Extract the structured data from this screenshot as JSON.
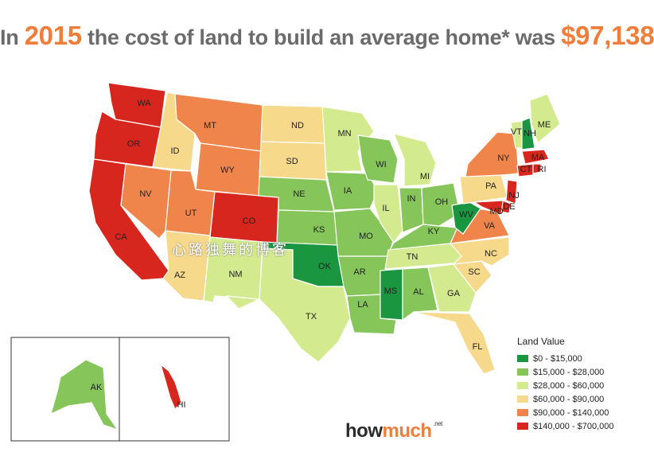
{
  "title": {
    "prefix": "In ",
    "year": "2015",
    "middle": " the cost of land to build an average home* was ",
    "amount": "$97,138"
  },
  "colors": {
    "c1": "#1a9641",
    "c2": "#86c55a",
    "c3": "#d4ea8f",
    "c4": "#f7d98b",
    "c5": "#f0854b",
    "c6": "#d7261d"
  },
  "legend": {
    "title": "Land Value",
    "items": [
      {
        "label": "$0 - $15,000",
        "color": "#1a9641"
      },
      {
        "label": "$15,000 - $28,000",
        "color": "#86c55a"
      },
      {
        "label": "$28,000 - $60,000",
        "color": "#d4ea8f"
      },
      {
        "label": "$60,000 - $90,000",
        "color": "#f7d98b"
      },
      {
        "label": "$90,000 - $140,000",
        "color": "#f0854b"
      },
      {
        "label": "$140,000 - $700,000",
        "color": "#d7261d"
      }
    ]
  },
  "states": [
    {
      "abbr": "WA",
      "tier": "c6"
    },
    {
      "abbr": "OR",
      "tier": "c6"
    },
    {
      "abbr": "CA",
      "tier": "c6"
    },
    {
      "abbr": "ID",
      "tier": "c4"
    },
    {
      "abbr": "NV",
      "tier": "c5"
    },
    {
      "abbr": "MT",
      "tier": "c5"
    },
    {
      "abbr": "WY",
      "tier": "c5"
    },
    {
      "abbr": "UT",
      "tier": "c5"
    },
    {
      "abbr": "AZ",
      "tier": "c4"
    },
    {
      "abbr": "CO",
      "tier": "c6"
    },
    {
      "abbr": "NM",
      "tier": "c3"
    },
    {
      "abbr": "ND",
      "tier": "c4"
    },
    {
      "abbr": "SD",
      "tier": "c4"
    },
    {
      "abbr": "NE",
      "tier": "c2"
    },
    {
      "abbr": "KS",
      "tier": "c2"
    },
    {
      "abbr": "OK",
      "tier": "c1"
    },
    {
      "abbr": "TX",
      "tier": "c3"
    },
    {
      "abbr": "MN",
      "tier": "c3"
    },
    {
      "abbr": "IA",
      "tier": "c2"
    },
    {
      "abbr": "MO",
      "tier": "c2"
    },
    {
      "abbr": "AR",
      "tier": "c2"
    },
    {
      "abbr": "LA",
      "tier": "c2"
    },
    {
      "abbr": "WI",
      "tier": "c2"
    },
    {
      "abbr": "IL",
      "tier": "c3"
    },
    {
      "abbr": "MI",
      "tier": "c3"
    },
    {
      "abbr": "IN",
      "tier": "c2"
    },
    {
      "abbr": "OH",
      "tier": "c2"
    },
    {
      "abbr": "KY",
      "tier": "c2"
    },
    {
      "abbr": "TN",
      "tier": "c3"
    },
    {
      "abbr": "MS",
      "tier": "c1"
    },
    {
      "abbr": "AL",
      "tier": "c2"
    },
    {
      "abbr": "GA",
      "tier": "c3"
    },
    {
      "abbr": "FL",
      "tier": "c4"
    },
    {
      "abbr": "SC",
      "tier": "c4"
    },
    {
      "abbr": "NC",
      "tier": "c4"
    },
    {
      "abbr": "VA",
      "tier": "c5"
    },
    {
      "abbr": "WV",
      "tier": "c1"
    },
    {
      "abbr": "PA",
      "tier": "c4"
    },
    {
      "abbr": "NY",
      "tier": "c5"
    },
    {
      "abbr": "VT",
      "tier": "c3"
    },
    {
      "abbr": "NH",
      "tier": "c1"
    },
    {
      "abbr": "ME",
      "tier": "c3"
    },
    {
      "abbr": "MA",
      "tier": "c6"
    },
    {
      "abbr": "CT",
      "tier": "c6"
    },
    {
      "abbr": "RI",
      "tier": "c6"
    },
    {
      "abbr": "NJ",
      "tier": "c6"
    },
    {
      "abbr": "DE",
      "tier": "c6"
    },
    {
      "abbr": "MD",
      "tier": "c6"
    },
    {
      "abbr": "AK",
      "tier": "c2"
    },
    {
      "abbr": "HI",
      "tier": "c6"
    }
  ],
  "labels": {
    "WA": "WA",
    "OR": "OR",
    "CA": "CA",
    "ID": "ID",
    "NV": "NV",
    "MT": "MT",
    "WY": "WY",
    "UT": "UT",
    "AZ": "AZ",
    "CO": "CO",
    "NM": "NM",
    "ND": "ND",
    "SD": "SD",
    "NE": "NE",
    "KS": "KS",
    "OK": "OK",
    "TX": "TX",
    "MN": "MN",
    "IA": "IA",
    "MO": "MO",
    "AR": "AR",
    "LA": "LA",
    "WI": "WI",
    "IL": "IL",
    "MI": "MI",
    "IN": "IN",
    "OH": "OH",
    "KY": "KY",
    "TN": "TN",
    "MS": "MS",
    "AL": "AL",
    "GA": "GA",
    "FL": "FL",
    "SC": "SC",
    "NC": "NC",
    "VA": "VA",
    "WV": "WV",
    "PA": "PA",
    "NY": "NY",
    "VT": "VT",
    "NH": "NH",
    "ME": "ME",
    "MA": "MA",
    "CT": "CT",
    "RI": "RI",
    "NJ": "NJ",
    "DE": "DE",
    "MD": "MD",
    "AK": "AK",
    "HI": "HI"
  },
  "brand": {
    "how": "how",
    "much": "much",
    "net": ".net"
  },
  "watermark": "心路独舞的博客"
}
